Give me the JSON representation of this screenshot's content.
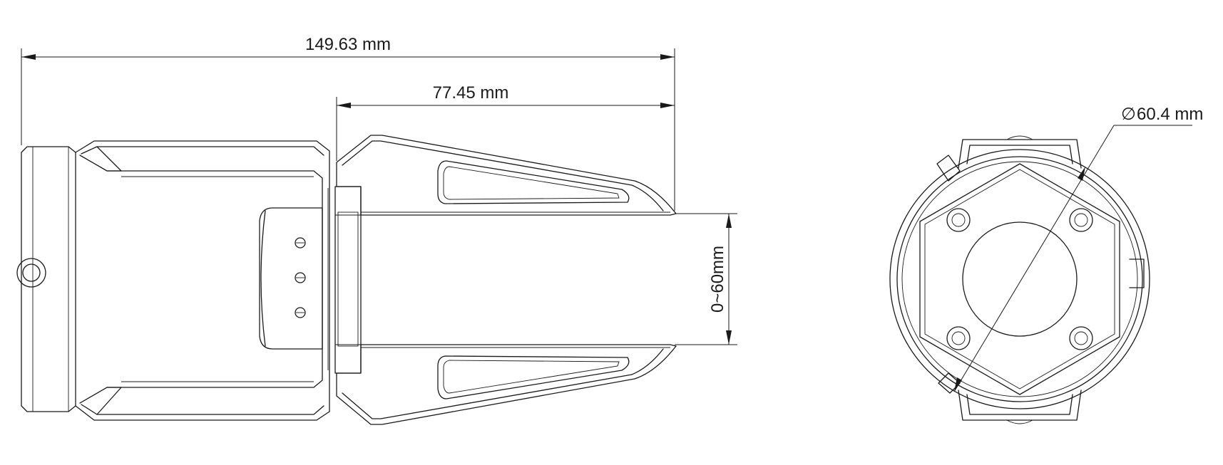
{
  "dimensions": {
    "overall_length": "149.63 mm",
    "finger_length": "77.45 mm",
    "stroke": "0~60mm",
    "diameter": "60.4 mm",
    "diameter_symbol": "∅"
  }
}
